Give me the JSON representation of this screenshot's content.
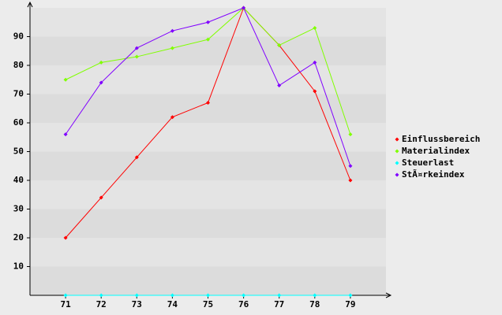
{
  "chart_data": {
    "type": "line",
    "categories": [
      "71",
      "72",
      "73",
      "74",
      "75",
      "76",
      "77",
      "78",
      "79"
    ],
    "series": [
      {
        "name": "Einflussbereich",
        "color": "#ff0000",
        "values": [
          20,
          34,
          48,
          62,
          67,
          100,
          87,
          71,
          40
        ]
      },
      {
        "name": "Materialindex",
        "color": "#80ff00",
        "values": [
          75,
          81,
          83,
          86,
          89,
          100,
          87,
          93,
          56
        ]
      },
      {
        "name": "Steuerlast",
        "color": "#00ffff",
        "values": [
          0,
          0,
          0,
          0,
          0,
          0,
          0,
          0,
          0
        ]
      },
      {
        "name": "StÃ¤rkeindex",
        "color": "#8000ff",
        "values": [
          56,
          74,
          86,
          92,
          95,
          100,
          73,
          81,
          45
        ]
      }
    ],
    "ylim": [
      0,
      100
    ],
    "yticks": [
      10,
      20,
      30,
      40,
      50,
      60,
      70,
      80,
      90
    ],
    "legend": "right",
    "grid": true
  }
}
